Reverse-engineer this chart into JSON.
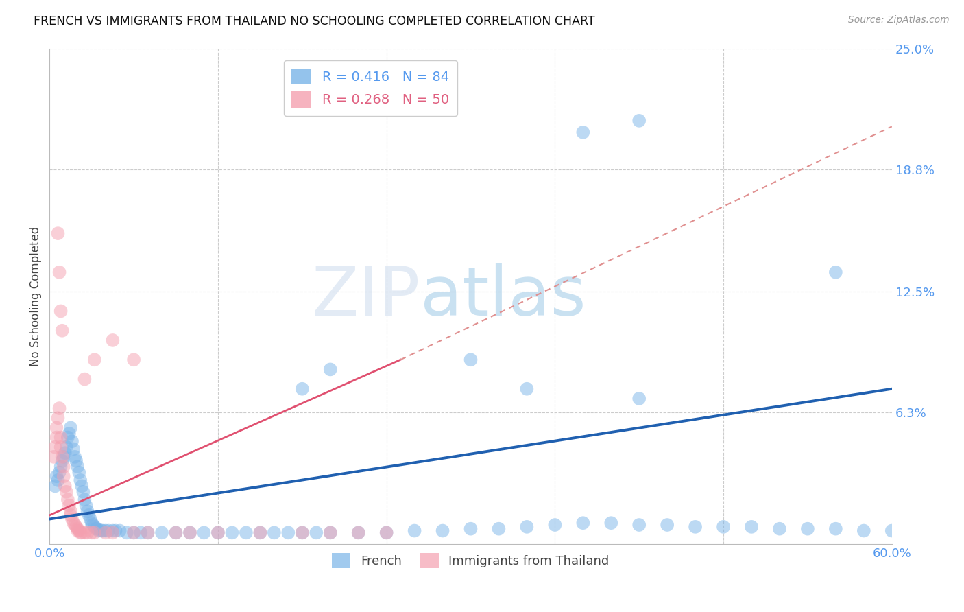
{
  "title": "FRENCH VS IMMIGRANTS FROM THAILAND NO SCHOOLING COMPLETED CORRELATION CHART",
  "source": "Source: ZipAtlas.com",
  "ylabel": "No Schooling Completed",
  "xlim": [
    0.0,
    0.6
  ],
  "ylim": [
    -0.005,
    0.25
  ],
  "xtick_positions": [
    0.0,
    0.12,
    0.24,
    0.36,
    0.48,
    0.6
  ],
  "xticklabels": [
    "0.0%",
    "",
    "",
    "",
    "",
    "60.0%"
  ],
  "ytick_values_right": [
    0.25,
    0.188,
    0.125,
    0.063
  ],
  "ytick_labels_right": [
    "25.0%",
    "18.8%",
    "12.5%",
    "6.3%"
  ],
  "french_color": "#7ab4e8",
  "thai_color": "#f4a0b0",
  "french_line_color": "#2060b0",
  "thai_line_solid_color": "#e05070",
  "thai_line_dash_color": "#e09090",
  "background_color": "#ffffff",
  "grid_color": "#cccccc",
  "marker_size": 200,
  "marker_alpha": 0.5,
  "french_x": [
    0.004,
    0.005,
    0.006,
    0.007,
    0.008,
    0.009,
    0.01,
    0.011,
    0.012,
    0.013,
    0.014,
    0.015,
    0.016,
    0.017,
    0.018,
    0.019,
    0.02,
    0.021,
    0.022,
    0.023,
    0.024,
    0.025,
    0.026,
    0.027,
    0.028,
    0.029,
    0.03,
    0.031,
    0.032,
    0.033,
    0.034,
    0.035,
    0.037,
    0.038,
    0.04,
    0.042,
    0.045,
    0.047,
    0.05,
    0.055,
    0.06,
    0.065,
    0.07,
    0.08,
    0.09,
    0.1,
    0.11,
    0.12,
    0.13,
    0.14,
    0.15,
    0.16,
    0.17,
    0.18,
    0.19,
    0.2,
    0.22,
    0.24,
    0.26,
    0.28,
    0.3,
    0.32,
    0.34,
    0.36,
    0.38,
    0.4,
    0.42,
    0.44,
    0.46,
    0.48,
    0.5,
    0.52,
    0.54,
    0.56,
    0.58,
    0.6,
    0.38,
    0.42,
    0.56,
    0.2,
    0.18,
    0.3,
    0.34,
    0.42
  ],
  "french_y": [
    0.025,
    0.03,
    0.028,
    0.032,
    0.035,
    0.038,
    0.04,
    0.042,
    0.045,
    0.05,
    0.052,
    0.055,
    0.048,
    0.044,
    0.04,
    0.038,
    0.035,
    0.032,
    0.028,
    0.025,
    0.022,
    0.018,
    0.015,
    0.012,
    0.01,
    0.008,
    0.006,
    0.005,
    0.004,
    0.003,
    0.003,
    0.002,
    0.002,
    0.002,
    0.002,
    0.002,
    0.002,
    0.002,
    0.002,
    0.001,
    0.001,
    0.001,
    0.001,
    0.001,
    0.001,
    0.001,
    0.001,
    0.001,
    0.001,
    0.001,
    0.001,
    0.001,
    0.001,
    0.001,
    0.001,
    0.001,
    0.001,
    0.001,
    0.002,
    0.002,
    0.003,
    0.003,
    0.004,
    0.005,
    0.006,
    0.006,
    0.005,
    0.005,
    0.004,
    0.004,
    0.004,
    0.003,
    0.003,
    0.003,
    0.002,
    0.002,
    0.207,
    0.213,
    0.135,
    0.085,
    0.075,
    0.09,
    0.075,
    0.07
  ],
  "thai_x": [
    0.003,
    0.004,
    0.005,
    0.005,
    0.006,
    0.007,
    0.008,
    0.008,
    0.009,
    0.01,
    0.01,
    0.011,
    0.012,
    0.013,
    0.014,
    0.015,
    0.015,
    0.016,
    0.017,
    0.018,
    0.019,
    0.02,
    0.02,
    0.021,
    0.022,
    0.023,
    0.025,
    0.027,
    0.03,
    0.032,
    0.04,
    0.045,
    0.06,
    0.07,
    0.09,
    0.1,
    0.12,
    0.15,
    0.18,
    0.2,
    0.22,
    0.24,
    0.006,
    0.007,
    0.008,
    0.009,
    0.025,
    0.032,
    0.045,
    0.06
  ],
  "thai_y": [
    0.04,
    0.045,
    0.05,
    0.055,
    0.06,
    0.065,
    0.05,
    0.045,
    0.04,
    0.035,
    0.03,
    0.025,
    0.022,
    0.018,
    0.015,
    0.012,
    0.01,
    0.008,
    0.006,
    0.005,
    0.004,
    0.003,
    0.002,
    0.002,
    0.001,
    0.001,
    0.001,
    0.001,
    0.001,
    0.001,
    0.001,
    0.001,
    0.001,
    0.001,
    0.001,
    0.001,
    0.001,
    0.001,
    0.001,
    0.001,
    0.001,
    0.001,
    0.155,
    0.135,
    0.115,
    0.105,
    0.08,
    0.09,
    0.1,
    0.09
  ],
  "french_line_x": [
    0.0,
    0.6
  ],
  "french_line_y": [
    0.008,
    0.075
  ],
  "thai_solid_line_x": [
    0.0,
    0.25
  ],
  "thai_solid_line_y": [
    0.01,
    0.09
  ],
  "thai_dash_line_x": [
    0.25,
    0.6
  ],
  "thai_dash_line_y": [
    0.09,
    0.21
  ]
}
